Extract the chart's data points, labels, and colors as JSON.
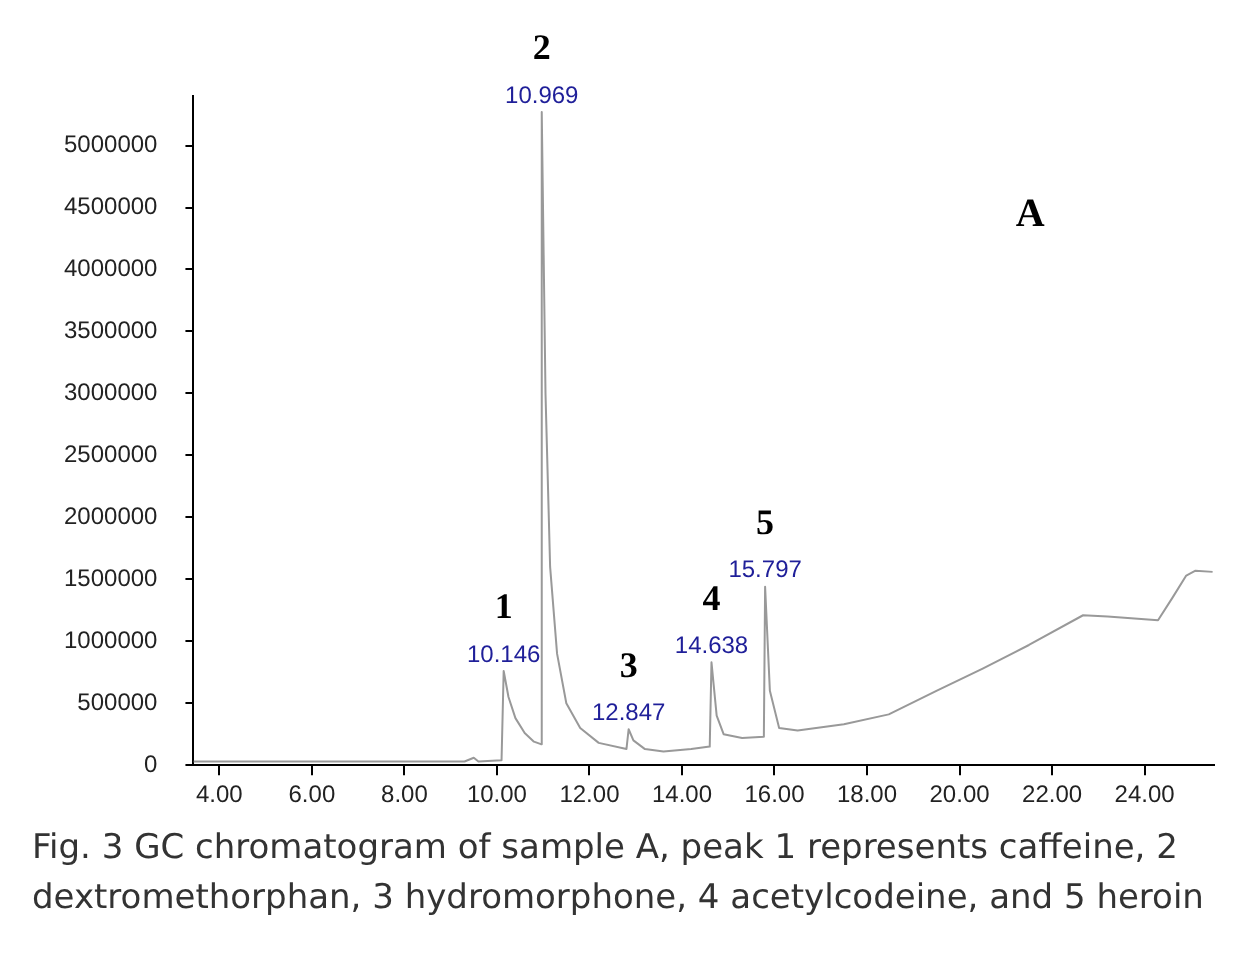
{
  "chart_data": {
    "type": "line",
    "x": [
      3.44,
      6.0,
      8.0,
      9.3,
      9.5,
      9.6,
      10.1,
      10.146,
      10.25,
      10.4,
      10.6,
      10.8,
      10.95,
      10.969,
      11.05,
      11.15,
      11.3,
      11.5,
      11.8,
      12.2,
      12.8,
      12.847,
      12.95,
      13.2,
      13.6,
      14.2,
      14.6,
      14.638,
      14.75,
      14.9,
      15.3,
      15.77,
      15.797,
      15.9,
      16.1,
      16.5,
      17.5,
      18.47,
      19.5,
      20.5,
      21.5,
      22.67,
      23.2,
      24.29,
      24.6,
      24.9,
      25.1,
      25.47
    ],
    "series": [
      {
        "color": "#999999",
        "values": [
          30000,
          30000,
          30000,
          30000,
          60000,
          30000,
          40000,
          760000,
          550000,
          380000,
          260000,
          190000,
          170000,
          5270000,
          3000000,
          1600000,
          900000,
          500000,
          300000,
          180000,
          130000,
          290000,
          200000,
          130000,
          110000,
          130000,
          150000,
          830000,
          400000,
          250000,
          220000,
          230000,
          1440000,
          600000,
          300000,
          280000,
          330000,
          410000,
          600000,
          780000,
          970000,
          1210000,
          1200000,
          1170000,
          1350000,
          1530000,
          1570000,
          1560000
        ]
      }
    ],
    "xlim": [
      3.44,
      25.5
    ],
    "xticks": [
      {
        "value": 4,
        "label": "4.00"
      },
      {
        "value": 6,
        "label": "6.00"
      },
      {
        "value": 8,
        "label": "8.00"
      },
      {
        "value": 10,
        "label": "10.00"
      },
      {
        "value": 12,
        "label": "12.00"
      },
      {
        "value": 14,
        "label": "14.00"
      },
      {
        "value": 16,
        "label": "16.00"
      },
      {
        "value": 18,
        "label": "18.00"
      },
      {
        "value": 20,
        "label": "20.00"
      },
      {
        "value": 22,
        "label": "22.00"
      },
      {
        "value": 24,
        "label": "24.00"
      }
    ],
    "ylim": [
      0,
      5400000
    ],
    "yticks": [
      0,
      500000,
      1000000,
      1500000,
      2000000,
      2500000,
      3000000,
      3500000,
      4000000,
      4500000,
      5000000
    ],
    "grid": false,
    "legend": false,
    "marker": "none",
    "line_style": "solid",
    "annotations": [
      "A",
      "Fig. 3 GC chromatogram of sample A, peak 1 represents caffeine, 2 dextromethorphan, 3 hydromorphone, 4 acetylcodeine, and 5 heroin",
      {
        "text": "10.146",
        "x": 10.146,
        "y": 760000
      },
      {
        "text": "10.969",
        "x": 10.969,
        "y": 5270000
      },
      {
        "text": "12.847",
        "x": 12.847,
        "y": 290000
      },
      {
        "text": "14.638",
        "x": 14.638,
        "y": 830000
      },
      {
        "text": "15.797",
        "x": 15.797,
        "y": 1440000
      },
      {
        "text": "1",
        "x": 10.146,
        "y": 760000
      },
      {
        "text": "2",
        "x": 10.969,
        "y": 5270000
      },
      {
        "text": "3",
        "x": 12.847,
        "y": 290000
      },
      {
        "text": "4",
        "x": 14.638,
        "y": 830000
      },
      {
        "text": "5",
        "x": 15.797,
        "y": 1440000
      }
    ]
  }
}
